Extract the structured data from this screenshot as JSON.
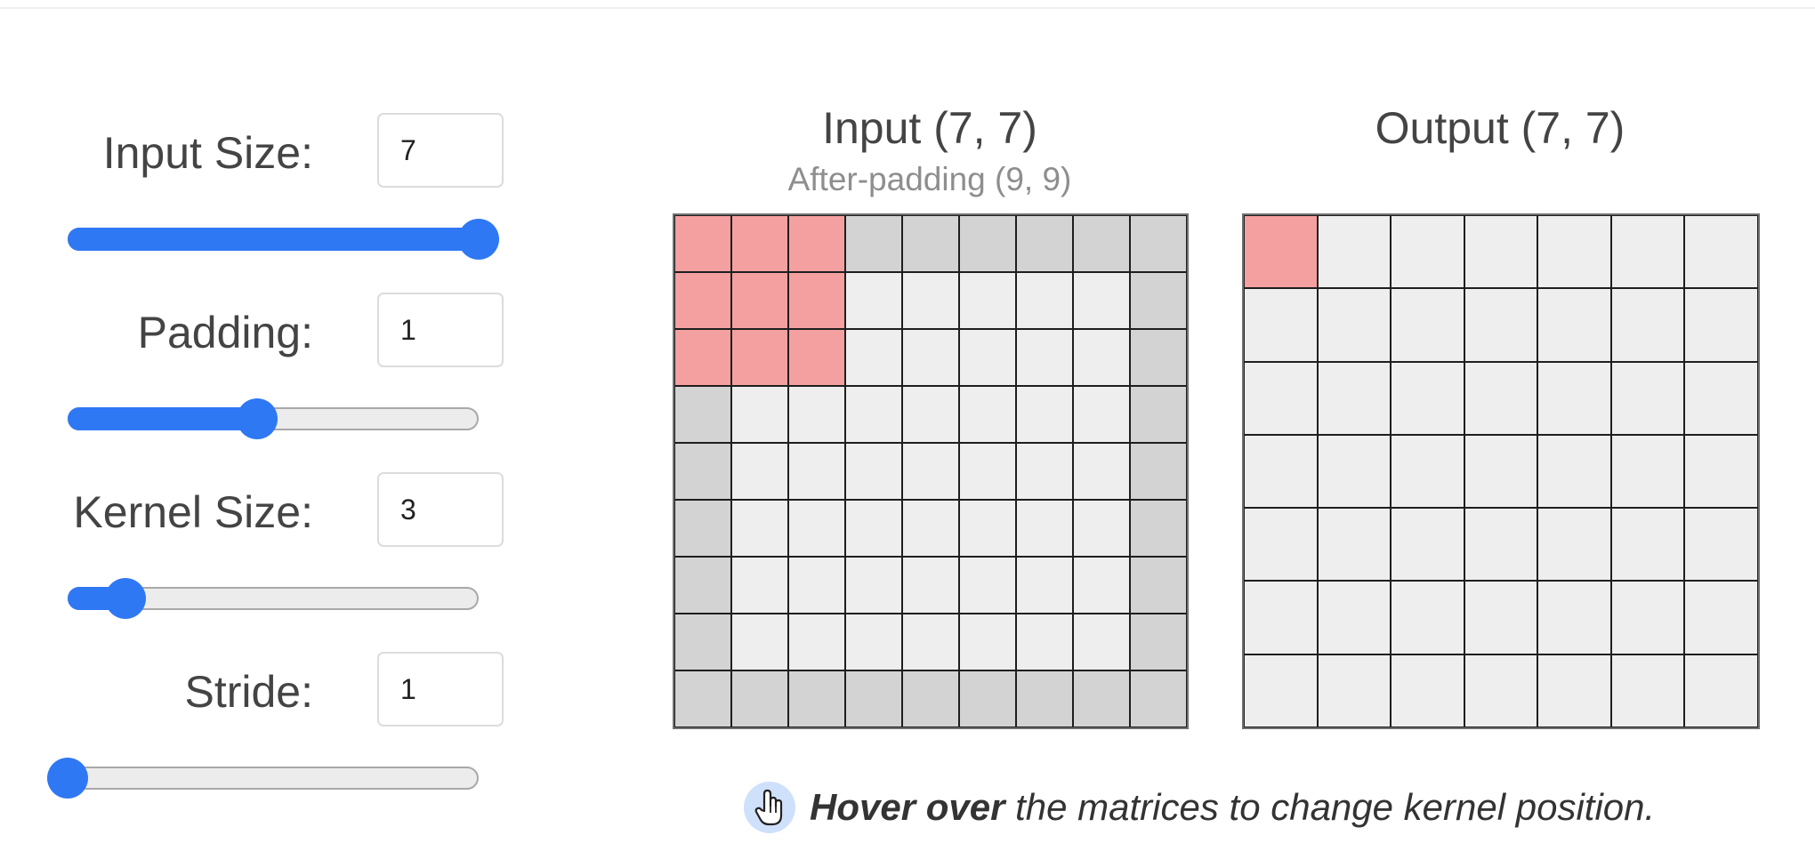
{
  "controls": [
    {
      "id": "input-size",
      "label": "Input Size:",
      "value": "7",
      "slider_fraction": 1.0
    },
    {
      "id": "padding",
      "label": "Padding:",
      "value": "1",
      "slider_fraction": 0.46
    },
    {
      "id": "kernel-size",
      "label": "Kernel Size:",
      "value": "3",
      "slider_fraction": 0.14
    },
    {
      "id": "stride",
      "label": "Stride:",
      "value": "1",
      "slider_fraction": 0.0
    }
  ],
  "input_matrix": {
    "title": "Input (7, 7)",
    "subtitle": "After-padding (9, 9)",
    "size": 7,
    "padding": 1,
    "kernel_size": 3,
    "kernel_position": [
      0,
      0
    ]
  },
  "output_matrix": {
    "title": "Output (7, 7)",
    "size": 7,
    "highlight_position": [
      0,
      0
    ]
  },
  "hint": {
    "icon": "pointer-hand-icon",
    "strong": "Hover over",
    "text": " the matrices to change kernel position."
  },
  "colors": {
    "accent": "#2f78f4",
    "kernel_highlight": "#f4a0a1",
    "padding_cell": "#d3d3d3",
    "cell": "#eeeeee"
  }
}
